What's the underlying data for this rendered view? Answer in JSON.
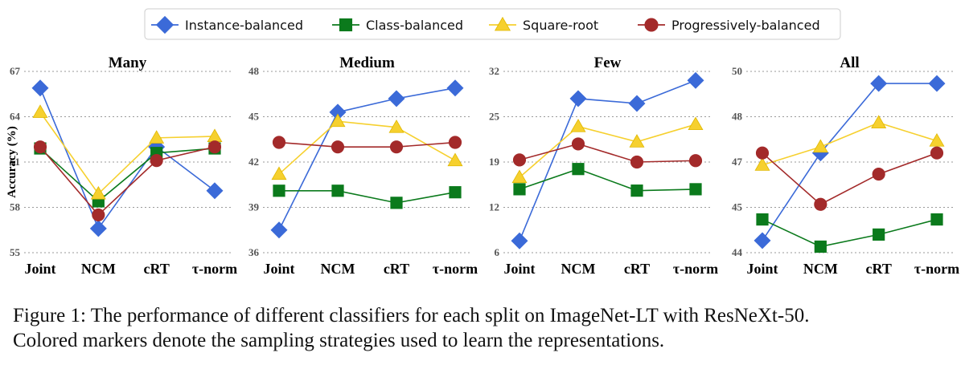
{
  "legend": [
    {
      "name": "Instance-balanced",
      "color": "#3b6ad8",
      "marker": "diamond"
    },
    {
      "name": "Class-balanced",
      "color": "#0b7a1c",
      "marker": "square"
    },
    {
      "name": "Square-root",
      "color": "#f6d02e",
      "marker": "triangle"
    },
    {
      "name": "Progressively-balanced",
      "color": "#a32a2a",
      "marker": "circle"
    }
  ],
  "chart_data": [
    {
      "type": "line",
      "title": "Many",
      "ylabel": "Accuracy (%)",
      "categories": [
        "Joint",
        "NCM",
        "cRT",
        "τ-norm"
      ],
      "ylim": [
        55,
        67
      ],
      "yticks": [
        "55",
        "58",
        "61",
        "64",
        "67"
      ],
      "grid": "horizontal-dotted",
      "series": [
        {
          "name": "Instance-balanced",
          "values": [
            65.9,
            56.6,
            62.0,
            59.1
          ]
        },
        {
          "name": "Class-balanced",
          "values": [
            61.9,
            58.4,
            61.6,
            61.9
          ]
        },
        {
          "name": "Square-root",
          "values": [
            64.3,
            58.9,
            62.6,
            62.7
          ]
        },
        {
          "name": "Progressively-balanced",
          "values": [
            62.0,
            57.5,
            61.1,
            62.0
          ]
        }
      ]
    },
    {
      "type": "line",
      "title": "Medium",
      "ylabel": "",
      "categories": [
        "Joint",
        "NCM",
        "cRT",
        "τ-norm"
      ],
      "ylim": [
        36,
        48
      ],
      "yticks": [
        "36",
        "39",
        "42",
        "45",
        "48"
      ],
      "grid": "horizontal-dotted",
      "series": [
        {
          "name": "Instance-balanced",
          "values": [
            37.5,
            45.3,
            46.2,
            46.9
          ]
        },
        {
          "name": "Class-balanced",
          "values": [
            40.1,
            40.1,
            39.3,
            40.0
          ]
        },
        {
          "name": "Square-root",
          "values": [
            41.2,
            44.7,
            44.3,
            42.1
          ]
        },
        {
          "name": "Progressively-balanced",
          "values": [
            43.3,
            43.0,
            43.0,
            43.3
          ]
        }
      ]
    },
    {
      "type": "line",
      "title": "Few",
      "ylabel": "",
      "categories": [
        "Joint",
        "NCM",
        "cRT",
        "τ-norm"
      ],
      "ylim": [
        6,
        32
      ],
      "yticks": [
        "6",
        "12",
        "19",
        "25",
        "32"
      ],
      "grid": "horizontal-dotted",
      "series": [
        {
          "name": "Instance-balanced",
          "values": [
            7.7,
            28.1,
            27.4,
            30.7
          ]
        },
        {
          "name": "Class-balanced",
          "values": [
            15.1,
            18.0,
            14.9,
            15.1
          ]
        },
        {
          "name": "Square-root",
          "values": [
            16.8,
            24.1,
            21.9,
            24.4
          ]
        },
        {
          "name": "Progressively-balanced",
          "values": [
            19.3,
            21.6,
            19.0,
            19.2
          ]
        }
      ]
    },
    {
      "type": "line",
      "title": "All",
      "ylabel": "",
      "categories": [
        "Joint",
        "NCM",
        "cRT",
        "τ-norm"
      ],
      "ylim": [
        44,
        50
      ],
      "yticks": [
        "44",
        "45",
        "47",
        "48",
        "50"
      ],
      "grid": "horizontal-dotted",
      "series": [
        {
          "name": "Instance-balanced",
          "values": [
            44.4,
            47.3,
            49.6,
            49.6
          ]
        },
        {
          "name": "Class-balanced",
          "values": [
            45.1,
            44.2,
            44.6,
            45.1
          ]
        },
        {
          "name": "Square-root",
          "values": [
            46.9,
            47.5,
            48.3,
            47.7
          ]
        },
        {
          "name": "Progressively-balanced",
          "values": [
            47.3,
            45.6,
            46.6,
            47.3
          ]
        }
      ]
    }
  ],
  "caption": {
    "line1": "Figure 1: The performance of different classifiers for each split on ImageNet-LT with ResNeXt-50.",
    "line2": "Colored markers denote the sampling strategies used to learn the representations."
  }
}
